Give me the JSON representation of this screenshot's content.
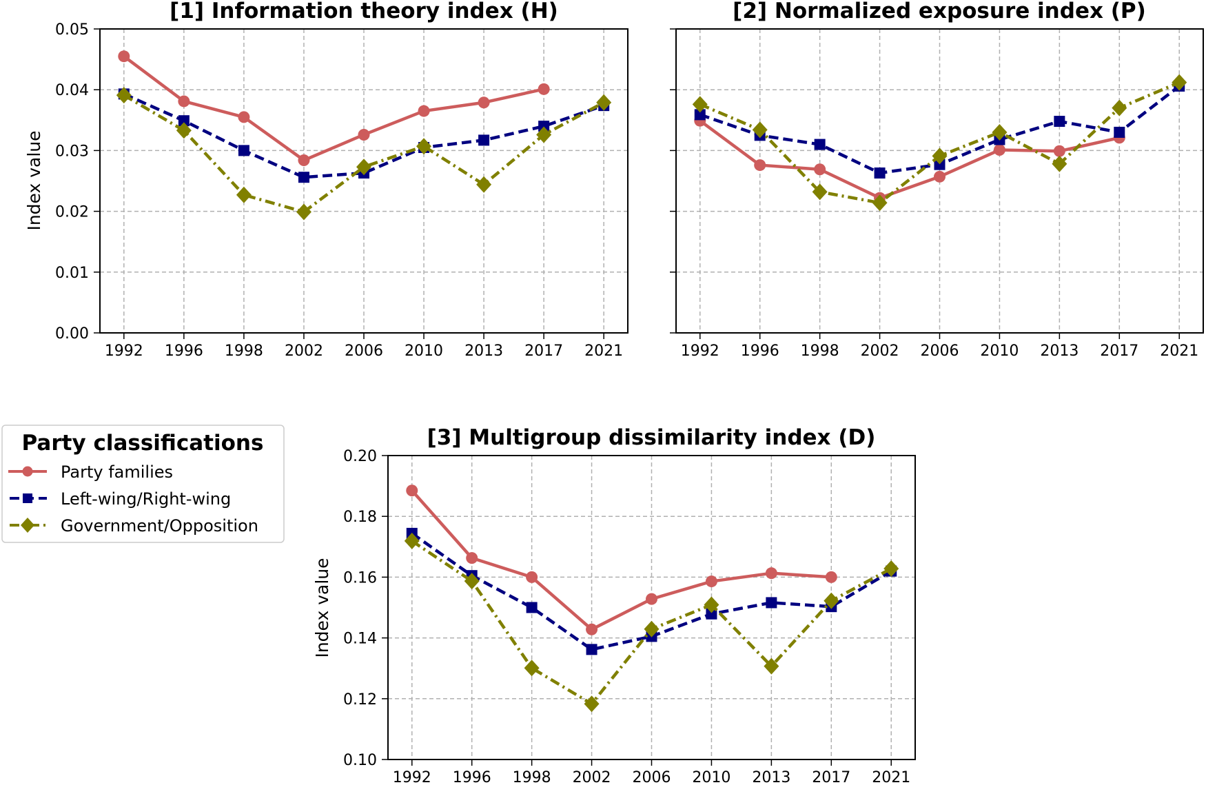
{
  "legend": {
    "title": "Party classifications",
    "placement": "left, between top row and bottom panel",
    "entries": [
      {
        "name": "Party families",
        "color": "#CD5C5C",
        "marker": "circle",
        "linestyle": "solid"
      },
      {
        "name": "Left-wing/Right-wing",
        "color": "#000080",
        "marker": "square",
        "linestyle": "dashed"
      },
      {
        "name": "Government/Opposition",
        "color": "#808000",
        "marker": "diamond",
        "linestyle": "dashdot"
      }
    ]
  },
  "chart_data": [
    {
      "type": "line",
      "title": "[1] Information theory index (H)",
      "xlabel": "",
      "ylabel": "Index value",
      "categories": [
        "1992",
        "1996",
        "1998",
        "2002",
        "2006",
        "2010",
        "2013",
        "2017",
        "2021"
      ],
      "ylim": [
        0.0,
        0.05
      ],
      "yticks": [
        "0.00",
        "0.01",
        "0.02",
        "0.03",
        "0.04",
        "0.05"
      ],
      "grid": true,
      "series": [
        {
          "name": "Party families",
          "values": [
            0.0455,
            0.0381,
            0.0355,
            0.0284,
            0.0326,
            0.0365,
            0.0379,
            0.0401,
            null
          ]
        },
        {
          "name": "Left-wing/Right-wing",
          "values": [
            0.0393,
            0.0349,
            0.03,
            0.0256,
            0.0263,
            0.0305,
            0.0317,
            0.034,
            0.0374
          ]
        },
        {
          "name": "Government/Opposition",
          "values": [
            0.0391,
            0.0333,
            0.0227,
            0.0199,
            0.0273,
            0.0307,
            0.0244,
            0.0326,
            0.0379
          ]
        }
      ]
    },
    {
      "type": "line",
      "title": "[2] Normalized exposure index (P)",
      "xlabel": "",
      "ylabel": "",
      "categories": [
        "1992",
        "1996",
        "1998",
        "2002",
        "2006",
        "2010",
        "2013",
        "2017",
        "2021"
      ],
      "ylim": [
        0.0,
        0.05
      ],
      "yticks": [],
      "grid": true,
      "series": [
        {
          "name": "Party families",
          "values": [
            0.0349,
            0.0276,
            0.0269,
            0.0222,
            0.0257,
            0.0301,
            0.0299,
            0.0321,
            null
          ]
        },
        {
          "name": "Left-wing/Right-wing",
          "values": [
            0.0359,
            0.0325,
            0.031,
            0.0263,
            0.0277,
            0.0318,
            0.0348,
            0.033,
            0.0406
          ]
        },
        {
          "name": "Government/Opposition",
          "values": [
            0.0376,
            0.0334,
            0.0232,
            0.0214,
            0.0291,
            0.033,
            0.0278,
            0.037,
            0.0412
          ]
        }
      ]
    },
    {
      "type": "line",
      "title": "[3] Multigroup dissimilarity index (D)",
      "xlabel": "",
      "ylabel": "Index value",
      "categories": [
        "1992",
        "1996",
        "1998",
        "2002",
        "2006",
        "2010",
        "2013",
        "2017",
        "2021"
      ],
      "ylim": [
        0.1,
        0.2
      ],
      "yticks": [
        "0.10",
        "0.12",
        "0.14",
        "0.16",
        "0.18",
        "0.20"
      ],
      "grid": true,
      "series": [
        {
          "name": "Party families",
          "values": [
            0.1885,
            0.1663,
            0.16,
            0.1428,
            0.1528,
            0.1586,
            0.1613,
            0.16,
            null
          ]
        },
        {
          "name": "Left-wing/Right-wing",
          "values": [
            0.1744,
            0.1605,
            0.15,
            0.1362,
            0.1405,
            0.1479,
            0.1516,
            0.1503,
            0.162
          ]
        },
        {
          "name": "Government/Opposition",
          "values": [
            0.1719,
            0.1587,
            0.1301,
            0.1183,
            0.1429,
            0.1509,
            0.1307,
            0.1522,
            0.1628
          ]
        }
      ]
    }
  ]
}
